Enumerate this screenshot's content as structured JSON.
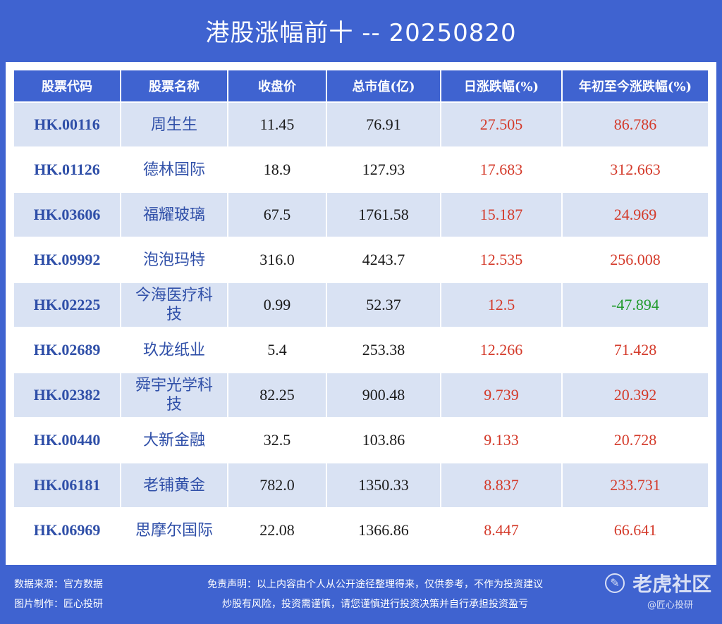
{
  "title": "港股涨幅前十 -- 20250820",
  "table": {
    "headers": [
      "股票代码",
      "股票名称",
      "收盘价",
      "总市值(亿)",
      "日涨跌幅(%)",
      "年初至今涨跌幅(%)"
    ],
    "rows": [
      {
        "code": "HK.00116",
        "name": "周生生",
        "close": "11.45",
        "cap": "76.91",
        "day": "27.505",
        "ytd": "86.786",
        "ytd_dir": "up"
      },
      {
        "code": "HK.01126",
        "name": "德林国际",
        "close": "18.9",
        "cap": "127.93",
        "day": "17.683",
        "ytd": "312.663",
        "ytd_dir": "up"
      },
      {
        "code": "HK.03606",
        "name": "福耀玻璃",
        "close": "67.5",
        "cap": "1761.58",
        "day": "15.187",
        "ytd": "24.969",
        "ytd_dir": "up"
      },
      {
        "code": "HK.09992",
        "name": "泡泡玛特",
        "close": "316.0",
        "cap": "4243.7",
        "day": "12.535",
        "ytd": "256.008",
        "ytd_dir": "up"
      },
      {
        "code": "HK.02225",
        "name": "今海医疗科技",
        "close": "0.99",
        "cap": "52.37",
        "day": "12.5",
        "ytd": "-47.894",
        "ytd_dir": "down"
      },
      {
        "code": "HK.02689",
        "name": "玖龙纸业",
        "close": "5.4",
        "cap": "253.38",
        "day": "12.266",
        "ytd": "71.428",
        "ytd_dir": "up"
      },
      {
        "code": "HK.02382",
        "name": "舜宇光学科技",
        "close": "82.25",
        "cap": "900.48",
        "day": "9.739",
        "ytd": "20.392",
        "ytd_dir": "up"
      },
      {
        "code": "HK.00440",
        "name": "大新金融",
        "close": "32.5",
        "cap": "103.86",
        "day": "9.133",
        "ytd": "20.728",
        "ytd_dir": "up"
      },
      {
        "code": "HK.06181",
        "name": "老铺黄金",
        "close": "782.0",
        "cap": "1350.33",
        "day": "8.837",
        "ytd": "233.731",
        "ytd_dir": "up"
      },
      {
        "code": "HK.06969",
        "name": "思摩尔国际",
        "close": "22.08",
        "cap": "1366.86",
        "day": "8.447",
        "ytd": "66.641",
        "ytd_dir": "up"
      }
    ]
  },
  "footer": {
    "source": "数据来源：官方数据",
    "maker": "图片制作：匠心投研",
    "disclaimer_line1": "免责声明：以上内容由个人从公开途径整理得来，仅供参考，不作为投资建议",
    "disclaimer_line2": "炒股有风险，投资需谨慎，请您谨慎进行投资决策并自行承担投资盈亏"
  },
  "watermark": {
    "logo_glyph": "✎",
    "name": "老虎社区",
    "sub": "@匠心投研"
  },
  "colors": {
    "background": "#3f63d0",
    "header_bg": "#3f63d0",
    "row_stripe": "#d9e2f3",
    "code_text": "#2f4fa8",
    "up": "#d43a2a",
    "down": "#1f9a2a"
  }
}
